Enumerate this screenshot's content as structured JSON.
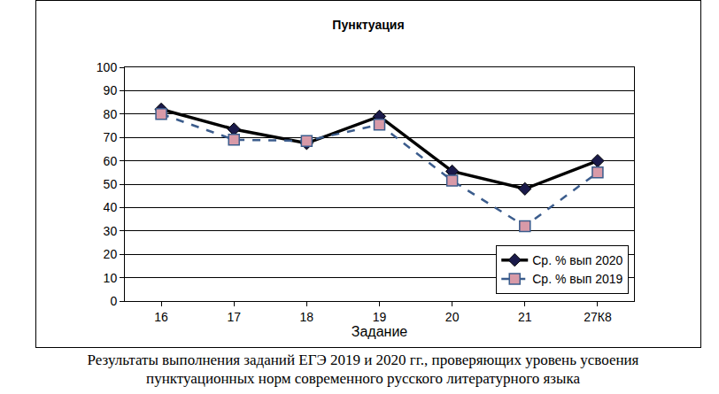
{
  "chart_data": {
    "type": "line",
    "title": "Пунктуация",
    "caption": "Результаты выполнения заданий ЕГЭ 2019 и 2020 гг., проверяющих уровень усвоения пунктуационных норм современного русского литературного языка",
    "x_label": "Задание",
    "categories": [
      "16",
      "17",
      "18",
      "19",
      "20",
      "21",
      "27К8"
    ],
    "series": [
      {
        "name": "Ср. % вып 2020",
        "color": "#000000",
        "marker": "diamond",
        "line_style": "solid",
        "values": [
          82,
          73.5,
          67.5,
          79,
          55.5,
          48,
          60
        ]
      },
      {
        "name": "Ср. % вып 2019",
        "color": "#3b5c8c",
        "marker": "square",
        "line_style": "dash",
        "values": [
          80,
          69,
          68.5,
          75.5,
          51.5,
          32,
          55
        ]
      }
    ],
    "ylim": [
      0,
      100
    ],
    "yticks": [
      0,
      10,
      20,
      30,
      40,
      50,
      60,
      70,
      80,
      90,
      100
    ],
    "grid": true,
    "legend": "bottom right"
  }
}
